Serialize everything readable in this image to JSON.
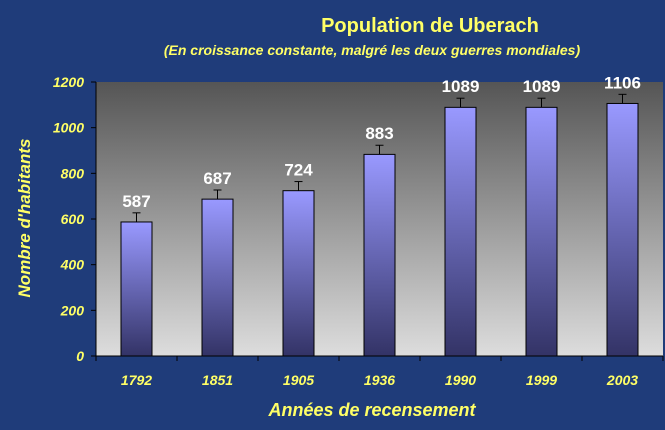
{
  "colors": {
    "background": "#1f3c7a",
    "title": "#ffff66",
    "subtitle": "#ffff66",
    "axis_label": "#ffff66",
    "tick_label": "#ffff66",
    "data_label": "#ffffff",
    "bar_top": "#9999ff",
    "bar_bottom": "#333366",
    "plot_top": "#555555",
    "plot_bottom": "#dddddd"
  },
  "chart_data": {
    "type": "bar",
    "title": "Population de Uberach",
    "subtitle": "(En croissance constante, malgré les deux guerres mondiales)",
    "xlabel": "Années de recensement",
    "ylabel": "Nombre d'habitants",
    "categories": [
      "1792",
      "1851",
      "1905",
      "1936",
      "1990",
      "1999",
      "2003"
    ],
    "values": [
      587,
      687,
      724,
      883,
      1089,
      1089,
      1106
    ],
    "data_labels": [
      "587",
      "687",
      "724",
      "883",
      "1089",
      "1089",
      "1106"
    ],
    "ylim": [
      0,
      1200
    ],
    "yticks": [
      0,
      200,
      400,
      600,
      800,
      1000,
      1200
    ],
    "ytick_labels": [
      "0",
      "200",
      "400",
      "600",
      "800",
      "1000",
      "1200"
    ],
    "error_bar_size": 40,
    "grid": false,
    "legend": "none"
  }
}
